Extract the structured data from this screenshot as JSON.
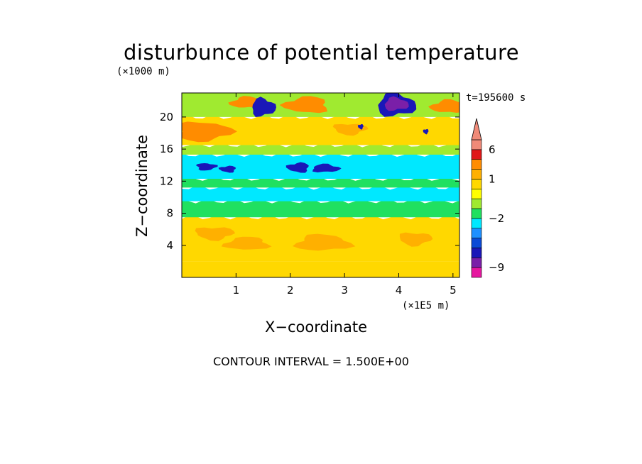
{
  "chart_data": {
    "type": "heatmap",
    "title": "disturbunce of potential temperature",
    "xlabel": "X−coordinate",
    "ylabel": "Z−coordinate",
    "x_unit": "(×1E5 m)",
    "y_unit": "(×1000 m)",
    "time_label": "t=195600 s",
    "contour_label": "CONTOUR INTERVAL = 1.500E+00",
    "xlim": [
      0,
      5.12
    ],
    "ylim": [
      0,
      23
    ],
    "x_ticks": [
      "1",
      "2",
      "3",
      "4",
      "5"
    ],
    "y_ticks": [
      "4",
      "8",
      "12",
      "16",
      "20"
    ],
    "colorbar": {
      "levels": [
        -12,
        -9,
        -7.5,
        -6,
        -4.5,
        -3,
        -2,
        -1,
        0,
        0.5,
        1,
        2,
        3,
        6,
        9,
        15
      ],
      "colors": [
        "#e6179f",
        "#7a1fa8",
        "#1a17b8",
        "#0a4ad6",
        "#1e90ff",
        "#00e8ff",
        "#20e060",
        "#a0ea30",
        "#ffff00",
        "#ffd800",
        "#ffb000",
        "#ff8c00",
        "#e01818",
        "#f08a78",
        "#f08a78"
      ],
      "tick_labels": [
        "6",
        "1",
        "−2",
        "−9"
      ],
      "tick_values": [
        6,
        1,
        -2,
        -9
      ]
    },
    "bands": [
      {
        "z_from": 0,
        "z_to": 2,
        "value": 0.6
      },
      {
        "z_from": 2,
        "z_to": 7.5,
        "value": 0.9
      },
      {
        "z_from": 7.5,
        "z_to": 9.5,
        "value": -1.4
      },
      {
        "z_from": 9.5,
        "z_to": 11.2,
        "value": -2.4
      },
      {
        "z_from": 11.2,
        "z_to": 12.3,
        "value": -1.2
      },
      {
        "z_from": 12.3,
        "z_to": 15.3,
        "value": -2.6
      },
      {
        "z_from": 15.3,
        "z_to": 16.5,
        "value": -1.0
      },
      {
        "z_from": 16.5,
        "z_to": 20,
        "value": 0.6
      },
      {
        "z_from": 20,
        "z_to": 23,
        "value": -0.9
      }
    ],
    "features": [
      {
        "x": 2.6,
        "z": 4.3,
        "rx": 0.5,
        "rz": 1.0,
        "value": 1.5
      },
      {
        "x": 1.2,
        "z": 4.2,
        "rx": 0.4,
        "rz": 0.8,
        "value": 1.5
      },
      {
        "x": 4.3,
        "z": 4.8,
        "rx": 0.3,
        "rz": 0.8,
        "value": 1.5
      },
      {
        "x": 0.6,
        "z": 5.5,
        "rx": 0.35,
        "rz": 0.8,
        "value": 1.5
      },
      {
        "x": 0.4,
        "z": 18.2,
        "rx": 0.5,
        "rz": 1.2,
        "value": 2.5
      },
      {
        "x": 2.3,
        "z": 21.5,
        "rx": 0.4,
        "rz": 1.0,
        "value": 2.5
      },
      {
        "x": 4.9,
        "z": 21.3,
        "rx": 0.3,
        "rz": 0.8,
        "value": 2.5
      },
      {
        "x": 1.2,
        "z": 21.8,
        "rx": 0.3,
        "rz": 0.7,
        "value": 2.5
      },
      {
        "x": 3.1,
        "z": 18.5,
        "rx": 0.3,
        "rz": 0.7,
        "value": 1.5
      },
      {
        "x": 1.5,
        "z": 21.2,
        "rx": 0.22,
        "rz": 1.1,
        "value": -6.5
      },
      {
        "x": 3.95,
        "z": 21.5,
        "rx": 0.35,
        "rz": 1.4,
        "value": -6.5
      },
      {
        "x": 3.95,
        "z": 21.6,
        "rx": 0.22,
        "rz": 0.8,
        "value": -8.5
      },
      {
        "x": 0.45,
        "z": 13.8,
        "rx": 0.18,
        "rz": 0.45,
        "value": -6.5
      },
      {
        "x": 0.85,
        "z": 13.5,
        "rx": 0.15,
        "rz": 0.4,
        "value": -6.5
      },
      {
        "x": 2.15,
        "z": 13.7,
        "rx": 0.2,
        "rz": 0.6,
        "value": -6.5
      },
      {
        "x": 2.65,
        "z": 13.6,
        "rx": 0.25,
        "rz": 0.5,
        "value": -6.5
      },
      {
        "x": 3.3,
        "z": 18.8,
        "rx": 0.05,
        "rz": 0.3,
        "value": -6.5
      },
      {
        "x": 4.5,
        "z": 18.2,
        "rx": 0.05,
        "rz": 0.3,
        "value": -6.5
      }
    ]
  }
}
